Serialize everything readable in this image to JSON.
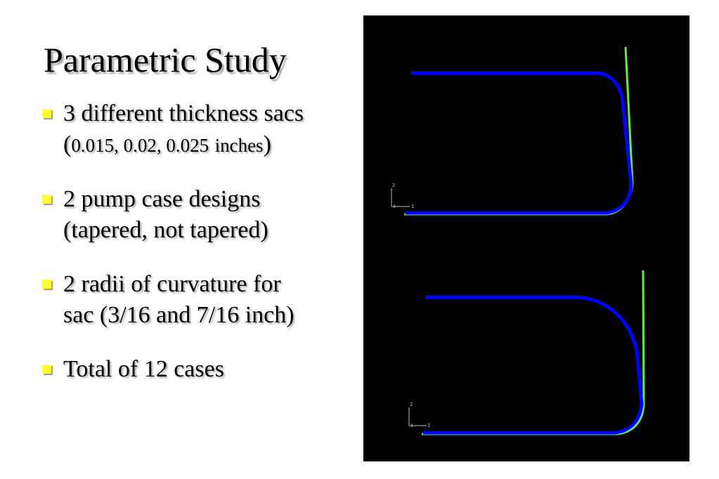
{
  "slide": {
    "title": "Parametric Study",
    "bullets": [
      {
        "line1": "3 different thickness sacs",
        "line2": {
          "open": "(",
          "values": "0.015,  0.02,  0.025",
          "unit": "inches",
          "close": ")"
        }
      },
      {
        "line1": "2 pump case designs",
        "line2": "(tapered, not tapered)"
      },
      {
        "line1": "2 radii of curvature for",
        "line2": "sac (3/16 and 7/16 inch)"
      },
      {
        "line1": "Total of 12 cases"
      }
    ],
    "bullet_color": "#ffff33"
  },
  "figures": {
    "background": "#000000",
    "sac_color": "#0000ff",
    "case_color": "#66ee44",
    "triad_color": "#bbbbbb",
    "top": {
      "case_design": "tapered",
      "axis_labels": {
        "y": "2",
        "x": "1",
        "origin": "3"
      }
    },
    "bottom": {
      "case_design": "not tapered",
      "axis_labels": {
        "y": "2",
        "x": "1",
        "origin": "3"
      }
    }
  }
}
